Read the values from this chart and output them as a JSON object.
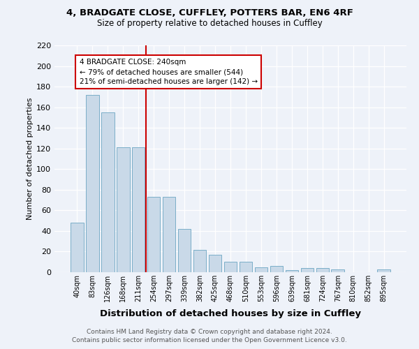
{
  "title1": "4, BRADGATE CLOSE, CUFFLEY, POTTERS BAR, EN6 4RF",
  "title2": "Size of property relative to detached houses in Cuffley",
  "xlabel": "Distribution of detached houses by size in Cuffley",
  "ylabel": "Number of detached properties",
  "categories": [
    "40sqm",
    "83sqm",
    "126sqm",
    "168sqm",
    "211sqm",
    "254sqm",
    "297sqm",
    "339sqm",
    "382sqm",
    "425sqm",
    "468sqm",
    "510sqm",
    "553sqm",
    "596sqm",
    "639sqm",
    "681sqm",
    "724sqm",
    "767sqm",
    "810sqm",
    "852sqm",
    "895sqm"
  ],
  "values": [
    48,
    172,
    155,
    121,
    121,
    73,
    73,
    42,
    22,
    17,
    10,
    10,
    5,
    6,
    2,
    4,
    4,
    3,
    0,
    0,
    3
  ],
  "bar_color": "#c9d9e8",
  "bar_edge_color": "#7aaec8",
  "background_color": "#eef2f9",
  "grid_color": "#ffffff",
  "vline_x_idx": 5,
  "vline_color": "#cc0000",
  "annotation_title": "4 BRADGATE CLOSE: 240sqm",
  "annotation_line1": "← 79% of detached houses are smaller (544)",
  "annotation_line2": "21% of semi-detached houses are larger (142) →",
  "annotation_box_color": "#ffffff",
  "annotation_border_color": "#cc0000",
  "footer1": "Contains HM Land Registry data © Crown copyright and database right 2024.",
  "footer2": "Contains public sector information licensed under the Open Government Licence v3.0.",
  "ylim": [
    0,
    220
  ],
  "yticks": [
    0,
    20,
    40,
    60,
    80,
    100,
    120,
    140,
    160,
    180,
    200,
    220
  ]
}
